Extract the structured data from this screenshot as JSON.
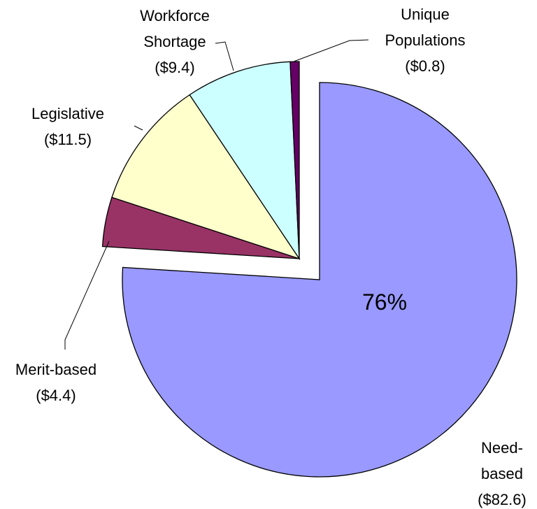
{
  "chart_data": {
    "type": "pie",
    "categories": [
      "Need-based",
      "Merit-based",
      "Legislative",
      "Workforce Shortage",
      "Unique Populations"
    ],
    "values": [
      82.6,
      4.4,
      11.5,
      9.4,
      0.8
    ],
    "value_labels": [
      "($82.6)",
      "($4.4)",
      "($11.5)",
      "($9.4)",
      "($0.8)"
    ],
    "colors": [
      "#9999ff",
      "#993366",
      "#ffffcc",
      "#ccffff",
      "#660066"
    ],
    "exploded": [
      true,
      false,
      false,
      false,
      false
    ],
    "inner_label": {
      "value": 76,
      "label": "76%"
    }
  }
}
